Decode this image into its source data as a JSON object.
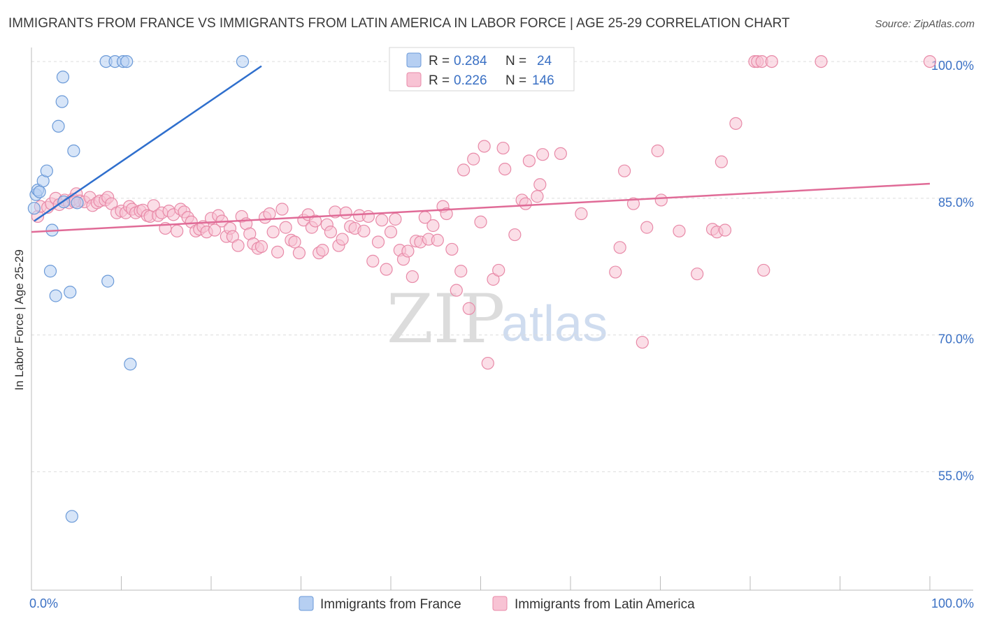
{
  "header": {
    "title": "IMMIGRANTS FROM FRANCE VS IMMIGRANTS FROM LATIN AMERICA IN LABOR FORCE | AGE 25-29 CORRELATION CHART",
    "source": "Source: ZipAtlas.com"
  },
  "watermark": {
    "zip": "ZIP",
    "atlas": "atlas"
  },
  "colors": {
    "france_fill": "#b6cff2",
    "france_stroke": "#6b9ad8",
    "france_line": "#2f6fcd",
    "latam_fill": "#f8c3d4",
    "latam_stroke": "#e88aa8",
    "latam_line": "#e06b97",
    "tick_text": "#3a70c4",
    "grid": "#dddddd"
  },
  "legend": {
    "rows": [
      {
        "r_label": "R = ",
        "r_value": "0.284",
        "n_label": "N = ",
        "n_value": "24"
      },
      {
        "r_label": "R = ",
        "r_value": "0.226",
        "n_label": "N = ",
        "n_value": "146"
      }
    ]
  },
  "bottom_legend": {
    "france": "Immigrants from France",
    "latam": "Immigrants from Latin America"
  },
  "chart_data": {
    "type": "scatter",
    "title": "IMMIGRANTS FROM FRANCE VS IMMIGRANTS FROM LATIN AMERICA IN LABOR FORCE | AGE 25-29 CORRELATION CHART",
    "xlabel": "",
    "ylabel": "In Labor Force | Age 25-29",
    "xlim": [
      0,
      100
    ],
    "ylim": [
      42,
      102
    ],
    "x_tick_labels": [
      {
        "value": 0,
        "label": "0.0%"
      },
      {
        "value": 100,
        "label": "100.0%"
      }
    ],
    "y_tick_labels": [
      {
        "value": 55,
        "label": "55.0%"
      },
      {
        "value": 70,
        "label": "70.0%"
      },
      {
        "value": 85,
        "label": "85.0%"
      },
      {
        "value": 100,
        "label": "100.0%"
      }
    ],
    "grid": true,
    "legend_position": "top-center",
    "series": [
      {
        "name": "Immigrants from France",
        "R": 0.284,
        "N": 24,
        "trendline": {
          "x": [
            0.3,
            25.6
          ],
          "y": [
            82.5,
            99.5
          ]
        },
        "points": [
          {
            "x": 0.3,
            "y": 83.9
          },
          {
            "x": 0.5,
            "y": 85.4
          },
          {
            "x": 0.7,
            "y": 85.9
          },
          {
            "x": 0.9,
            "y": 85.7
          },
          {
            "x": 1.3,
            "y": 86.9
          },
          {
            "x": 1.7,
            "y": 88.0
          },
          {
            "x": 2.1,
            "y": 77.0
          },
          {
            "x": 2.3,
            "y": 81.5
          },
          {
            "x": 2.7,
            "y": 74.3
          },
          {
            "x": 3.0,
            "y": 92.9
          },
          {
            "x": 3.4,
            "y": 95.6
          },
          {
            "x": 3.5,
            "y": 98.3
          },
          {
            "x": 3.6,
            "y": 84.6
          },
          {
            "x": 4.3,
            "y": 74.7
          },
          {
            "x": 4.5,
            "y": 50.1
          },
          {
            "x": 4.7,
            "y": 90.2
          },
          {
            "x": 5.1,
            "y": 84.5
          },
          {
            "x": 8.3,
            "y": 100.0
          },
          {
            "x": 8.5,
            "y": 75.9
          },
          {
            "x": 9.3,
            "y": 100.0
          },
          {
            "x": 10.2,
            "y": 100.0
          },
          {
            "x": 10.6,
            "y": 100.0
          },
          {
            "x": 11.0,
            "y": 66.8
          },
          {
            "x": 23.5,
            "y": 100.0
          }
        ]
      },
      {
        "name": "Immigrants from Latin America",
        "R": 0.226,
        "N": 146,
        "trendline": {
          "x": [
            0,
            100
          ],
          "y": [
            81.3,
            86.6
          ]
        },
        "points": [
          {
            "x": 0.7,
            "y": 83.0
          },
          {
            "x": 1.0,
            "y": 84.1
          },
          {
            "x": 1.8,
            "y": 84.0
          },
          {
            "x": 2.2,
            "y": 84.4
          },
          {
            "x": 2.7,
            "y": 85.0
          },
          {
            "x": 3.1,
            "y": 84.3
          },
          {
            "x": 3.7,
            "y": 84.8
          },
          {
            "x": 4.2,
            "y": 84.5
          },
          {
            "x": 4.6,
            "y": 84.9
          },
          {
            "x": 5.0,
            "y": 85.5
          },
          {
            "x": 5.4,
            "y": 84.7
          },
          {
            "x": 5.9,
            "y": 84.6
          },
          {
            "x": 6.5,
            "y": 85.1
          },
          {
            "x": 6.8,
            "y": 84.2
          },
          {
            "x": 7.3,
            "y": 84.5
          },
          {
            "x": 7.6,
            "y": 84.7
          },
          {
            "x": 8.2,
            "y": 84.8
          },
          {
            "x": 8.5,
            "y": 85.1
          },
          {
            "x": 8.9,
            "y": 84.4
          },
          {
            "x": 9.5,
            "y": 83.4
          },
          {
            "x": 10.0,
            "y": 83.6
          },
          {
            "x": 10.5,
            "y": 83.4
          },
          {
            "x": 10.9,
            "y": 84.1
          },
          {
            "x": 11.2,
            "y": 83.8
          },
          {
            "x": 11.6,
            "y": 83.4
          },
          {
            "x": 12.1,
            "y": 83.6
          },
          {
            "x": 12.4,
            "y": 83.7
          },
          {
            "x": 12.9,
            "y": 83.1
          },
          {
            "x": 13.2,
            "y": 83.0
          },
          {
            "x": 13.6,
            "y": 84.2
          },
          {
            "x": 14.1,
            "y": 83.1
          },
          {
            "x": 14.5,
            "y": 83.4
          },
          {
            "x": 14.9,
            "y": 81.7
          },
          {
            "x": 15.3,
            "y": 83.6
          },
          {
            "x": 15.8,
            "y": 83.2
          },
          {
            "x": 16.2,
            "y": 81.4
          },
          {
            "x": 16.6,
            "y": 83.8
          },
          {
            "x": 17.0,
            "y": 83.5
          },
          {
            "x": 17.4,
            "y": 82.9
          },
          {
            "x": 17.8,
            "y": 82.4
          },
          {
            "x": 18.3,
            "y": 81.4
          },
          {
            "x": 18.7,
            "y": 81.6
          },
          {
            "x": 19.1,
            "y": 81.9
          },
          {
            "x": 19.5,
            "y": 81.3
          },
          {
            "x": 20.0,
            "y": 82.8
          },
          {
            "x": 20.4,
            "y": 81.5
          },
          {
            "x": 20.8,
            "y": 83.1
          },
          {
            "x": 21.2,
            "y": 82.5
          },
          {
            "x": 21.7,
            "y": 80.8
          },
          {
            "x": 22.1,
            "y": 81.7
          },
          {
            "x": 22.4,
            "y": 80.8
          },
          {
            "x": 23.0,
            "y": 79.8
          },
          {
            "x": 23.4,
            "y": 83.0
          },
          {
            "x": 23.9,
            "y": 82.2
          },
          {
            "x": 24.3,
            "y": 81.1
          },
          {
            "x": 24.7,
            "y": 80.0
          },
          {
            "x": 25.2,
            "y": 79.5
          },
          {
            "x": 25.6,
            "y": 79.7
          },
          {
            "x": 26.0,
            "y": 82.9
          },
          {
            "x": 26.5,
            "y": 83.3
          },
          {
            "x": 26.9,
            "y": 81.3
          },
          {
            "x": 27.4,
            "y": 79.1
          },
          {
            "x": 27.9,
            "y": 83.8
          },
          {
            "x": 28.3,
            "y": 81.8
          },
          {
            "x": 28.9,
            "y": 80.4
          },
          {
            "x": 29.3,
            "y": 80.2
          },
          {
            "x": 29.8,
            "y": 79.0
          },
          {
            "x": 30.3,
            "y": 82.6
          },
          {
            "x": 30.8,
            "y": 83.2
          },
          {
            "x": 31.2,
            "y": 81.8
          },
          {
            "x": 31.6,
            "y": 82.5
          },
          {
            "x": 32.0,
            "y": 79.0
          },
          {
            "x": 32.4,
            "y": 79.3
          },
          {
            "x": 32.9,
            "y": 82.1
          },
          {
            "x": 33.3,
            "y": 81.3
          },
          {
            "x": 33.8,
            "y": 83.5
          },
          {
            "x": 34.2,
            "y": 79.8
          },
          {
            "x": 34.6,
            "y": 80.5
          },
          {
            "x": 35.0,
            "y": 83.4
          },
          {
            "x": 35.5,
            "y": 81.9
          },
          {
            "x": 36.0,
            "y": 81.7
          },
          {
            "x": 36.5,
            "y": 83.1
          },
          {
            "x": 37.0,
            "y": 81.4
          },
          {
            "x": 37.5,
            "y": 83.0
          },
          {
            "x": 38.0,
            "y": 78.1
          },
          {
            "x": 38.6,
            "y": 80.2
          },
          {
            "x": 39.0,
            "y": 82.6
          },
          {
            "x": 39.5,
            "y": 77.2
          },
          {
            "x": 40.0,
            "y": 81.3
          },
          {
            "x": 40.5,
            "y": 82.7
          },
          {
            "x": 41.0,
            "y": 79.3
          },
          {
            "x": 41.4,
            "y": 78.3
          },
          {
            "x": 41.9,
            "y": 79.2
          },
          {
            "x": 42.4,
            "y": 76.4
          },
          {
            "x": 42.8,
            "y": 80.3
          },
          {
            "x": 43.3,
            "y": 80.2
          },
          {
            "x": 43.8,
            "y": 82.9
          },
          {
            "x": 44.2,
            "y": 80.5
          },
          {
            "x": 44.7,
            "y": 82.0
          },
          {
            "x": 45.2,
            "y": 80.4
          },
          {
            "x": 45.8,
            "y": 84.1
          },
          {
            "x": 46.2,
            "y": 83.3
          },
          {
            "x": 46.8,
            "y": 79.4
          },
          {
            "x": 47.3,
            "y": 74.9
          },
          {
            "x": 47.8,
            "y": 77.0
          },
          {
            "x": 48.1,
            "y": 88.1
          },
          {
            "x": 48.7,
            "y": 72.9
          },
          {
            "x": 49.2,
            "y": 89.3
          },
          {
            "x": 50.0,
            "y": 82.4
          },
          {
            "x": 50.4,
            "y": 90.7
          },
          {
            "x": 50.8,
            "y": 66.9
          },
          {
            "x": 51.4,
            "y": 76.1
          },
          {
            "x": 52.0,
            "y": 77.1
          },
          {
            "x": 52.5,
            "y": 90.5
          },
          {
            "x": 52.7,
            "y": 88.2
          },
          {
            "x": 53.8,
            "y": 81.0
          },
          {
            "x": 54.6,
            "y": 84.8
          },
          {
            "x": 55.0,
            "y": 84.4
          },
          {
            "x": 55.4,
            "y": 89.1
          },
          {
            "x": 56.3,
            "y": 85.2
          },
          {
            "x": 56.6,
            "y": 86.5
          },
          {
            "x": 56.9,
            "y": 89.8
          },
          {
            "x": 57.5,
            "y": 98.4
          },
          {
            "x": 58.9,
            "y": 89.9
          },
          {
            "x": 61.2,
            "y": 83.3
          },
          {
            "x": 65.0,
            "y": 76.9
          },
          {
            "x": 65.5,
            "y": 79.6
          },
          {
            "x": 66.0,
            "y": 88.0
          },
          {
            "x": 67.0,
            "y": 84.4
          },
          {
            "x": 68.0,
            "y": 69.2
          },
          {
            "x": 68.5,
            "y": 81.8
          },
          {
            "x": 69.7,
            "y": 90.2
          },
          {
            "x": 70.1,
            "y": 84.8
          },
          {
            "x": 72.1,
            "y": 81.4
          },
          {
            "x": 74.1,
            "y": 76.7
          },
          {
            "x": 75.8,
            "y": 81.6
          },
          {
            "x": 76.3,
            "y": 81.3
          },
          {
            "x": 76.8,
            "y": 89.0
          },
          {
            "x": 77.2,
            "y": 81.5
          },
          {
            "x": 80.5,
            "y": 100.0
          },
          {
            "x": 80.8,
            "y": 100.0
          },
          {
            "x": 81.3,
            "y": 100.0
          },
          {
            "x": 81.5,
            "y": 77.1
          },
          {
            "x": 82.4,
            "y": 100.0
          },
          {
            "x": 78.4,
            "y": 93.2
          },
          {
            "x": 87.9,
            "y": 100.0
          },
          {
            "x": 100.0,
            "y": 100.0
          },
          {
            "x": 4.8,
            "y": 84.6
          }
        ]
      }
    ]
  }
}
